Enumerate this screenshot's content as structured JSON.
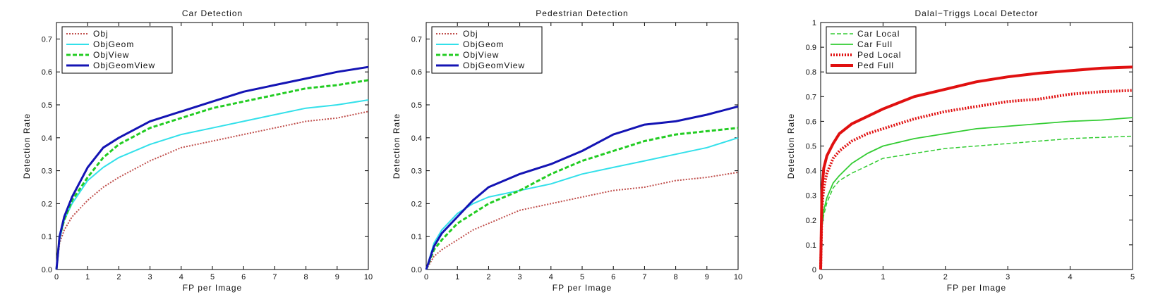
{
  "chart_data": [
    {
      "type": "line",
      "title": "Car Detection",
      "xlabel": "FP per Image",
      "ylabel": "Detection Rate",
      "xlim": [
        0,
        10
      ],
      "ylim": [
        0,
        0.75
      ],
      "xticks": [
        0,
        1,
        2,
        3,
        4,
        5,
        6,
        7,
        8,
        9,
        10
      ],
      "xtick_labels": [
        "0",
        "1",
        "2",
        "3",
        "4",
        "5",
        "6",
        "7",
        "8",
        "9",
        "10"
      ],
      "yticks": [
        0,
        0.1,
        0.2,
        0.3,
        0.4,
        0.5,
        0.6,
        0.7
      ],
      "ytick_labels": [
        "0.0",
        "0.1",
        "0.2",
        "0.3",
        "0.4",
        "0.5",
        "0.6",
        "0.7"
      ],
      "legend_position": "top-left",
      "series": [
        {
          "name": "Obj",
          "color": "#c0504d",
          "dash": "dotted",
          "width": 2,
          "x": [
            0,
            0.1,
            0.25,
            0.5,
            1,
            1.5,
            2,
            3,
            4,
            5,
            6,
            7,
            8,
            9,
            10
          ],
          "y": [
            0,
            0.08,
            0.12,
            0.16,
            0.21,
            0.25,
            0.28,
            0.33,
            0.37,
            0.39,
            0.41,
            0.43,
            0.45,
            0.46,
            0.48
          ]
        },
        {
          "name": "ObjGeom",
          "color": "#33e0ea",
          "dash": "solid",
          "width": 2,
          "x": [
            0,
            0.1,
            0.25,
            0.5,
            1,
            1.5,
            2,
            3,
            4,
            5,
            6,
            7,
            8,
            9,
            10
          ],
          "y": [
            0,
            0.09,
            0.15,
            0.2,
            0.27,
            0.31,
            0.34,
            0.38,
            0.41,
            0.43,
            0.45,
            0.47,
            0.49,
            0.5,
            0.515
          ]
        },
        {
          "name": "ObjView",
          "color": "#22cc22",
          "dash": "dashed",
          "width": 3,
          "x": [
            0,
            0.1,
            0.25,
            0.5,
            1,
            1.5,
            2,
            3,
            4,
            5,
            6,
            7,
            8,
            9,
            10
          ],
          "y": [
            0,
            0.1,
            0.15,
            0.21,
            0.28,
            0.34,
            0.38,
            0.43,
            0.46,
            0.49,
            0.51,
            0.53,
            0.55,
            0.56,
            0.575
          ]
        },
        {
          "name": "ObjGeomView",
          "color": "#1414b4",
          "dash": "solid",
          "width": 3,
          "x": [
            0,
            0.1,
            0.25,
            0.5,
            1,
            1.5,
            2,
            3,
            4,
            5,
            6,
            7,
            8,
            9,
            10
          ],
          "y": [
            0,
            0.1,
            0.16,
            0.22,
            0.31,
            0.37,
            0.4,
            0.45,
            0.48,
            0.51,
            0.54,
            0.56,
            0.58,
            0.6,
            0.615
          ]
        }
      ]
    },
    {
      "type": "line",
      "title": "Pedestrian Detection",
      "xlabel": "FP per Image",
      "ylabel": "Detection Rate",
      "xlim": [
        0,
        10
      ],
      "ylim": [
        0,
        0.75
      ],
      "xticks": [
        0,
        1,
        2,
        3,
        4,
        5,
        6,
        7,
        8,
        9,
        10
      ],
      "xtick_labels": [
        "0",
        "1",
        "2",
        "3",
        "4",
        "5",
        "6",
        "7",
        "8",
        "9",
        "10"
      ],
      "yticks": [
        0,
        0.1,
        0.2,
        0.3,
        0.4,
        0.5,
        0.6,
        0.7
      ],
      "ytick_labels": [
        "0.0",
        "0.1",
        "0.2",
        "0.3",
        "0.4",
        "0.5",
        "0.6",
        "0.7"
      ],
      "legend_position": "top-left",
      "series": [
        {
          "name": "Obj",
          "color": "#c0504d",
          "dash": "dotted",
          "width": 2,
          "x": [
            0,
            0.25,
            0.5,
            1,
            1.5,
            2,
            3,
            4,
            5,
            6,
            7,
            8,
            9,
            10
          ],
          "y": [
            0,
            0.04,
            0.06,
            0.09,
            0.12,
            0.14,
            0.18,
            0.2,
            0.22,
            0.24,
            0.25,
            0.27,
            0.28,
            0.295
          ]
        },
        {
          "name": "ObjGeom",
          "color": "#33e0ea",
          "dash": "solid",
          "width": 2,
          "x": [
            0,
            0.25,
            0.5,
            1,
            1.5,
            2,
            3,
            4,
            5,
            6,
            7,
            8,
            9,
            10
          ],
          "y": [
            0,
            0.08,
            0.12,
            0.17,
            0.2,
            0.22,
            0.24,
            0.26,
            0.29,
            0.31,
            0.33,
            0.35,
            0.37,
            0.4
          ]
        },
        {
          "name": "ObjView",
          "color": "#22cc22",
          "dash": "dashed",
          "width": 3,
          "x": [
            0,
            0.25,
            0.5,
            1,
            1.5,
            2,
            3,
            4,
            5,
            6,
            7,
            8,
            9,
            10
          ],
          "y": [
            0,
            0.06,
            0.09,
            0.14,
            0.17,
            0.2,
            0.24,
            0.29,
            0.33,
            0.36,
            0.39,
            0.41,
            0.42,
            0.43
          ]
        },
        {
          "name": "ObjGeomView",
          "color": "#1414b4",
          "dash": "solid",
          "width": 3,
          "x": [
            0,
            0.25,
            0.5,
            1,
            1.5,
            2,
            3,
            4,
            5,
            6,
            7,
            8,
            9,
            10
          ],
          "y": [
            0,
            0.07,
            0.11,
            0.16,
            0.21,
            0.25,
            0.29,
            0.32,
            0.36,
            0.41,
            0.44,
            0.45,
            0.47,
            0.495
          ]
        }
      ]
    },
    {
      "type": "line",
      "title": "Dalal−Triggs Local Detector",
      "xlabel": "FP per Image",
      "ylabel": "Detection Rate",
      "xlim": [
        0,
        5
      ],
      "ylim": [
        0,
        1
      ],
      "xticks": [
        0,
        1,
        2,
        3,
        4,
        5
      ],
      "xtick_labels": [
        "0",
        "1",
        "2",
        "3",
        "4",
        "5"
      ],
      "yticks": [
        0,
        0.1,
        0.2,
        0.3,
        0.4,
        0.5,
        0.6,
        0.7,
        0.8,
        0.9,
        1
      ],
      "ytick_labels": [
        "0",
        "0.1",
        "0.2",
        "0.3",
        "0.4",
        "0.5",
        "0.6",
        "0.7",
        "0.8",
        "0.9",
        "1"
      ],
      "legend_position": "top-left",
      "series": [
        {
          "name": "Car Local",
          "color": "#33cc33",
          "dash": "dashed",
          "width": 1.5,
          "x": [
            0,
            0.02,
            0.05,
            0.1,
            0.2,
            0.3,
            0.5,
            0.75,
            1,
            1.5,
            2,
            2.5,
            3,
            3.5,
            4,
            4.5,
            5
          ],
          "y": [
            0,
            0.17,
            0.22,
            0.27,
            0.33,
            0.36,
            0.39,
            0.42,
            0.45,
            0.47,
            0.49,
            0.5,
            0.51,
            0.52,
            0.53,
            0.535,
            0.54
          ]
        },
        {
          "name": "Car Full",
          "color": "#33cc33",
          "dash": "solid",
          "width": 1.8,
          "x": [
            0,
            0.02,
            0.05,
            0.1,
            0.2,
            0.3,
            0.5,
            0.75,
            1,
            1.5,
            2,
            2.5,
            3,
            3.5,
            4,
            4.5,
            5
          ],
          "y": [
            0,
            0.18,
            0.24,
            0.29,
            0.35,
            0.38,
            0.43,
            0.47,
            0.5,
            0.53,
            0.55,
            0.57,
            0.58,
            0.59,
            0.6,
            0.605,
            0.615
          ]
        },
        {
          "name": "Ped Local",
          "color": "#e01010",
          "dash": "dotted",
          "width": 4,
          "x": [
            0,
            0.02,
            0.05,
            0.1,
            0.2,
            0.3,
            0.5,
            0.75,
            1,
            1.5,
            2,
            2.5,
            3,
            3.5,
            4,
            4.5,
            5
          ],
          "y": [
            0,
            0.25,
            0.33,
            0.39,
            0.45,
            0.48,
            0.52,
            0.55,
            0.57,
            0.61,
            0.64,
            0.66,
            0.68,
            0.69,
            0.71,
            0.72,
            0.725
          ]
        },
        {
          "name": "Ped Full",
          "color": "#e01010",
          "dash": "solid",
          "width": 4,
          "x": [
            0,
            0.02,
            0.05,
            0.1,
            0.2,
            0.3,
            0.5,
            0.75,
            1,
            1.5,
            2,
            2.5,
            3,
            3.5,
            4,
            4.5,
            5
          ],
          "y": [
            0,
            0.32,
            0.41,
            0.46,
            0.51,
            0.55,
            0.59,
            0.62,
            0.65,
            0.7,
            0.73,
            0.76,
            0.78,
            0.795,
            0.805,
            0.815,
            0.82
          ]
        }
      ]
    }
  ]
}
